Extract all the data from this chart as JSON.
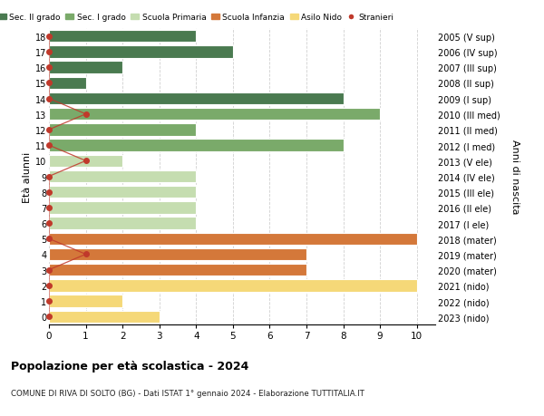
{
  "ages": [
    18,
    17,
    16,
    15,
    14,
    13,
    12,
    11,
    10,
    9,
    8,
    7,
    6,
    5,
    4,
    3,
    2,
    1,
    0
  ],
  "years": [
    "2005 (V sup)",
    "2006 (IV sup)",
    "2007 (III sup)",
    "2008 (II sup)",
    "2009 (I sup)",
    "2010 (III med)",
    "2011 (II med)",
    "2012 (I med)",
    "2013 (V ele)",
    "2014 (IV ele)",
    "2015 (III ele)",
    "2016 (II ele)",
    "2017 (I ele)",
    "2018 (mater)",
    "2019 (mater)",
    "2020 (mater)",
    "2021 (nido)",
    "2022 (nido)",
    "2023 (nido)"
  ],
  "values": [
    4,
    5,
    2,
    1,
    8,
    9,
    4,
    8,
    2,
    4,
    4,
    4,
    4,
    10,
    7,
    7,
    10,
    2,
    3
  ],
  "colors": [
    "#4a7a50",
    "#4a7a50",
    "#4a7a50",
    "#4a7a50",
    "#4a7a50",
    "#7aaa6a",
    "#7aaa6a",
    "#7aaa6a",
    "#c5ddb0",
    "#c5ddb0",
    "#c5ddb0",
    "#c5ddb0",
    "#c5ddb0",
    "#d4783a",
    "#d4783a",
    "#d4783a",
    "#f5d878",
    "#f5d878",
    "#f5d878"
  ],
  "stranieri_x": [
    0,
    0,
    0,
    0,
    0,
    1,
    0,
    0,
    1,
    0,
    0,
    0,
    0,
    0,
    1,
    0,
    0,
    0,
    0
  ],
  "bar_height": 0.78,
  "xlim": [
    0,
    10.5
  ],
  "ylim": [
    -0.5,
    18.5
  ],
  "xlabel_ticks": [
    0,
    1,
    2,
    3,
    4,
    5,
    6,
    7,
    8,
    9,
    10
  ],
  "title": "Popolazione per età scolastica - 2024",
  "subtitle": "COMUNE DI RIVA DI SOLTO (BG) - Dati ISTAT 1° gennaio 2024 - Elaborazione TUTTITALIA.IT",
  "ylabel": "Età alunni",
  "ylabel2": "Anni di nascita",
  "legend_colors_patch": [
    "#4a7a50",
    "#7aaa6a",
    "#c5ddb0",
    "#d4783a",
    "#f5d878"
  ],
  "legend_labels_patch": [
    "Sec. II grado",
    "Sec. I grado",
    "Scuola Primaria",
    "Scuola Infanzia",
    "Asilo Nido"
  ],
  "stranieri_color": "#c0392b",
  "bg_color": "#ffffff",
  "grid_color": "#d0d0d0"
}
